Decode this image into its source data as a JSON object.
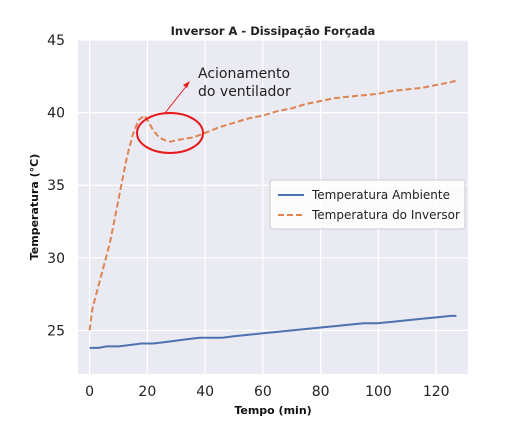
{
  "chart_data": {
    "type": "line",
    "title": "Inversor A - Dissipação Forçada",
    "xlabel": "Tempo (min)",
    "ylabel": "Temperatura (°C)",
    "xlim": [
      -4,
      131
    ],
    "ylim": [
      22,
      45
    ],
    "xticks": [
      0,
      20,
      40,
      60,
      80,
      100,
      120
    ],
    "yticks": [
      25,
      30,
      35,
      40,
      45
    ],
    "grid": true,
    "legend_position": "center-right",
    "series": [
      {
        "name": "Temperatura Ambiente",
        "color": "#4c72b0",
        "style": "solid",
        "x": [
          0,
          3,
          6,
          10,
          14,
          18,
          22,
          26,
          30,
          34,
          38,
          42,
          46,
          50,
          55,
          60,
          65,
          70,
          75,
          80,
          85,
          90,
          95,
          100,
          105,
          110,
          115,
          120,
          125,
          127
        ],
        "y": [
          23.8,
          23.8,
          23.9,
          23.9,
          24.0,
          24.1,
          24.1,
          24.2,
          24.3,
          24.4,
          24.5,
          24.5,
          24.5,
          24.6,
          24.7,
          24.8,
          24.9,
          25.0,
          25.1,
          25.2,
          25.3,
          25.4,
          25.5,
          25.5,
          25.6,
          25.7,
          25.8,
          25.9,
          26.0,
          26.0
        ]
      },
      {
        "name": "Temperatura do Inversor",
        "color": "#dd8452",
        "style": "dashed",
        "x": [
          0,
          1,
          3,
          5,
          7,
          9,
          11,
          13,
          15,
          17,
          19,
          20,
          22,
          24,
          26,
          28,
          30,
          33,
          36,
          40,
          45,
          50,
          55,
          60,
          65,
          70,
          75,
          80,
          85,
          90,
          95,
          100,
          105,
          110,
          115,
          120,
          125,
          127
        ],
        "y": [
          25.0,
          26.5,
          28.0,
          29.5,
          31.0,
          33.0,
          35.0,
          37.0,
          38.5,
          39.5,
          39.8,
          39.5,
          38.8,
          38.3,
          38.1,
          38.0,
          38.1,
          38.2,
          38.3,
          38.6,
          39.0,
          39.3,
          39.6,
          39.8,
          40.1,
          40.3,
          40.6,
          40.8,
          41.0,
          41.1,
          41.2,
          41.3,
          41.5,
          41.6,
          41.7,
          41.9,
          42.1,
          42.2
        ]
      }
    ],
    "annotations": [
      {
        "text_lines": [
          "Acionamento",
          "do ventilador"
        ]
      }
    ]
  }
}
